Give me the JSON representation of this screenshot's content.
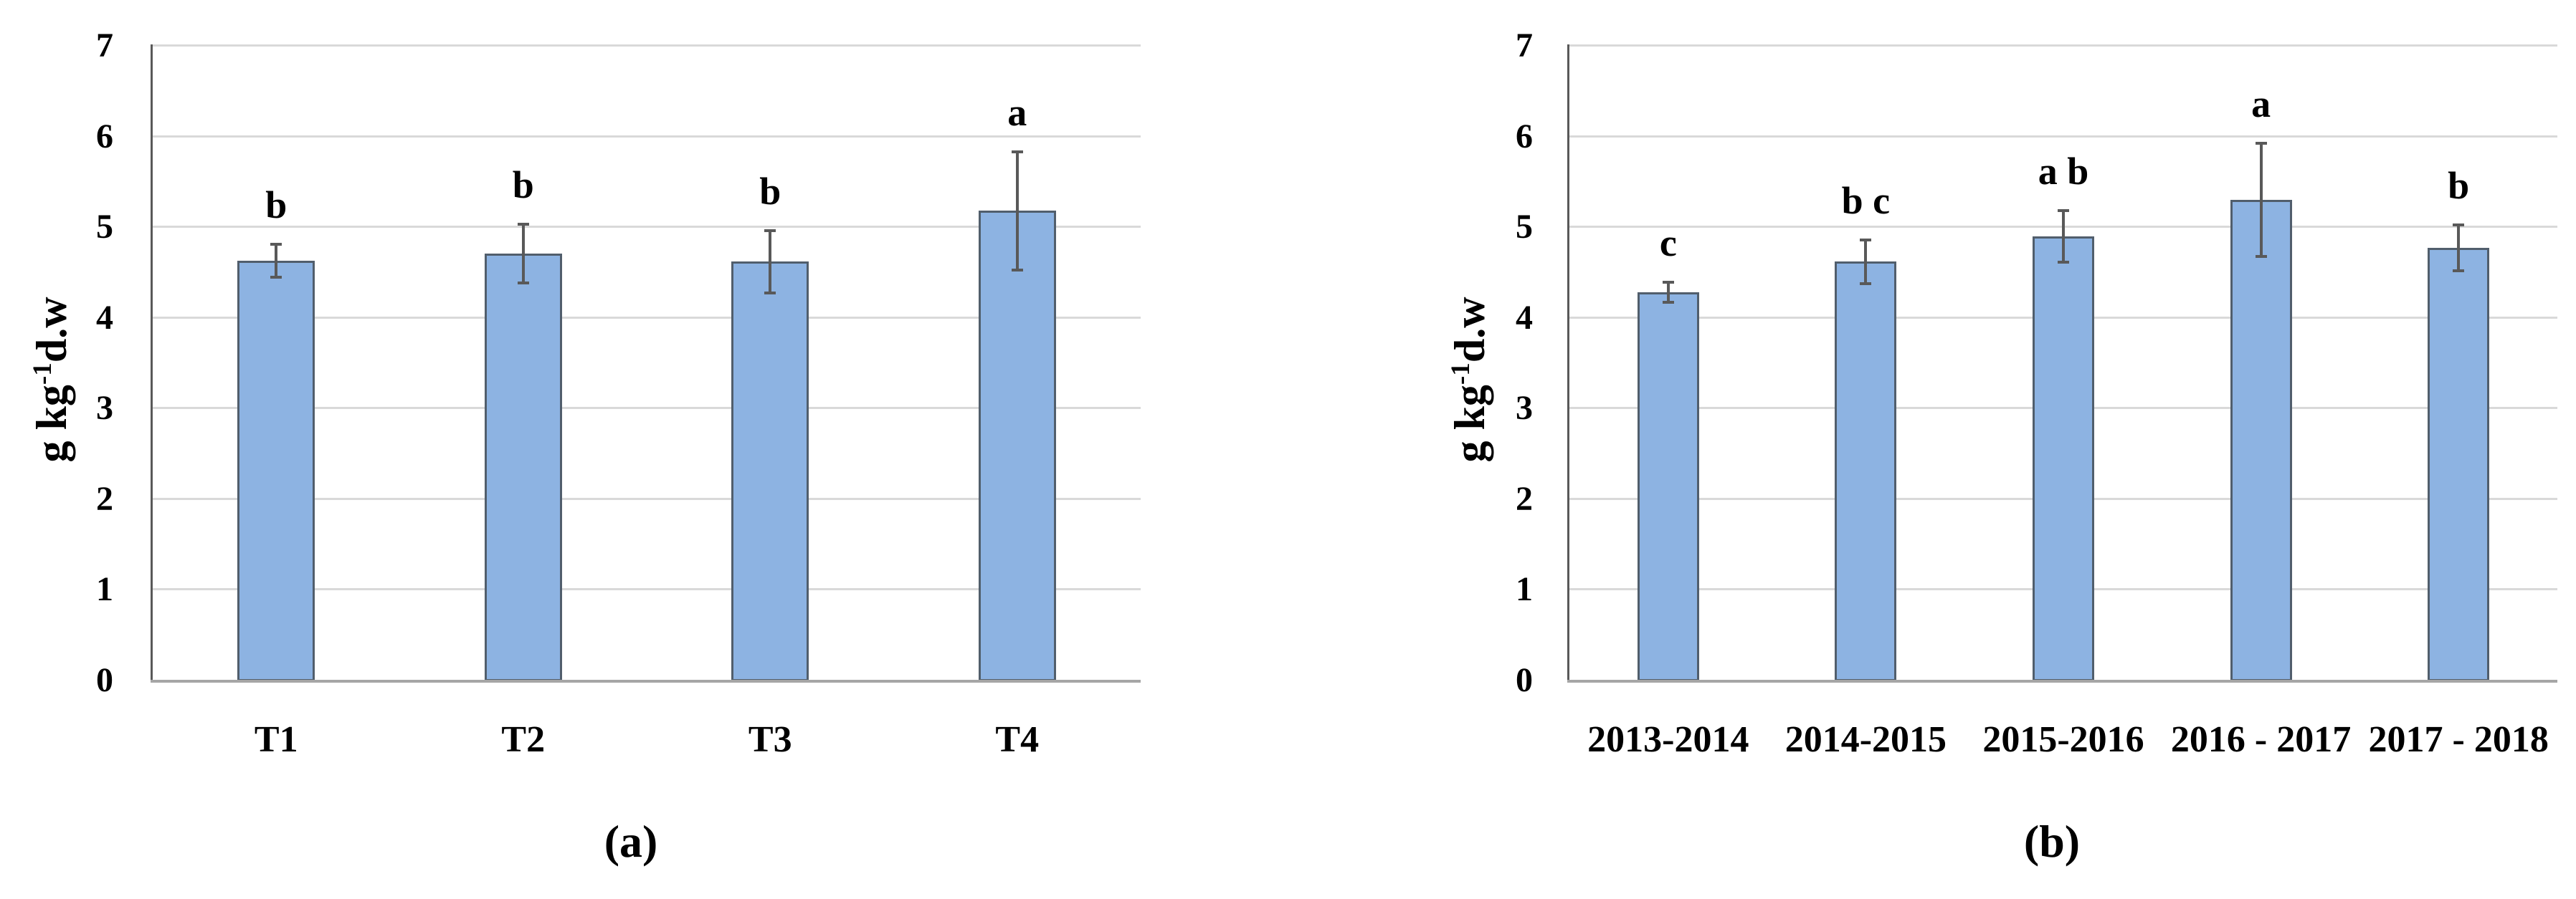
{
  "figure": {
    "description": "Two-panel bar chart figure with error bars and significance letters"
  },
  "colors": {
    "background": "#FFFFFF",
    "bar_fill": "#8DB3E2",
    "bar_border": "#515E6C",
    "gridline": "#D9D9D9",
    "y_axis_line": "#595959",
    "x_axis_line": "#A6A6A6",
    "error_bar": "#595959",
    "text": "#000000"
  },
  "chart_data": [
    {
      "type": "bar",
      "panel": "a",
      "caption": "(a)",
      "ylabel": "g kg⁻¹d.w",
      "ylabel_prefix": "g kg",
      "ylabel_sup": "-1",
      "ylabel_suffix": "d.w",
      "xlabel": "",
      "ylim": [
        0,
        7
      ],
      "yticks": [
        0,
        1,
        2,
        3,
        4,
        5,
        6,
        7
      ],
      "grid": true,
      "legend": false,
      "categories": [
        "T1",
        "T2",
        "T3",
        "T4"
      ],
      "values": [
        4.63,
        4.71,
        4.62,
        5.18
      ],
      "error_bars": [
        0.19,
        0.33,
        0.35,
        0.66
      ],
      "significance_letters": [
        "b",
        "b",
        "b",
        "a"
      ]
    },
    {
      "type": "bar",
      "panel": "b",
      "caption": "(b)",
      "ylabel": "g kg⁻¹d.w",
      "ylabel_prefix": "g kg",
      "ylabel_sup": "-1",
      "ylabel_suffix": "d.w",
      "xlabel": "",
      "ylim": [
        0,
        7
      ],
      "yticks": [
        0,
        1,
        2,
        3,
        4,
        5,
        6,
        7
      ],
      "grid": true,
      "legend": false,
      "categories": [
        "2013-2014",
        "2014-2015",
        "2015-2016",
        "2016 - 2017",
        "2017 - 2018"
      ],
      "values": [
        4.28,
        4.62,
        4.9,
        5.3,
        4.77
      ],
      "error_bars": [
        0.12,
        0.25,
        0.29,
        0.63,
        0.26
      ],
      "significance_letters": [
        "c",
        "b c",
        "a b",
        "a",
        "b"
      ]
    }
  ]
}
